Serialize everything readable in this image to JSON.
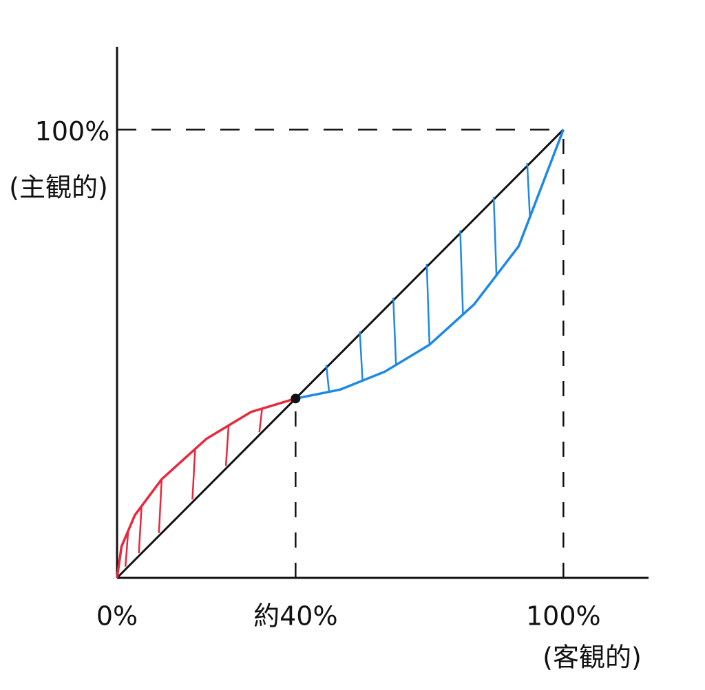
{
  "chart_data": {
    "type": "line",
    "x_label": "(客観的)",
    "y_label": "(主観的)",
    "xlim": [
      0,
      120
    ],
    "ylim": [
      0,
      120
    ],
    "xticks": [
      {
        "value": 0,
        "label": "0%"
      },
      {
        "value": 40,
        "label": "約40%"
      },
      {
        "value": 100,
        "label": "100%"
      }
    ],
    "yticks": [
      {
        "value": 100,
        "label": "100%"
      }
    ],
    "series": [
      {
        "color": "#111111",
        "x": [
          0,
          100
        ],
        "values": [
          0,
          100
        ]
      },
      {
        "color": "#e8283c",
        "x": [
          0,
          1,
          4,
          10,
          20,
          30,
          40
        ],
        "values": [
          0,
          7,
          14,
          22,
          31,
          37,
          40
        ]
      },
      {
        "color": "#1e88e5",
        "x": [
          40,
          50,
          60,
          70,
          80,
          90,
          100
        ],
        "values": [
          40,
          42,
          46,
          52,
          61,
          74,
          100
        ]
      }
    ]
  }
}
